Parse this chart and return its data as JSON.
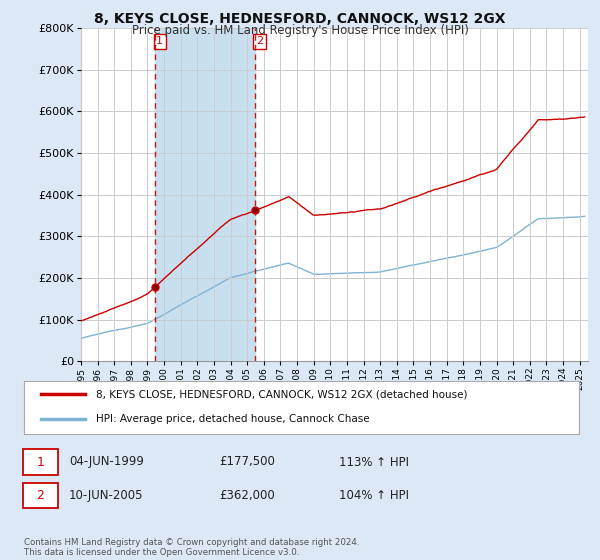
{
  "title": "8, KEYS CLOSE, HEDNESFORD, CANNOCK, WS12 2GX",
  "subtitle": "Price paid vs. HM Land Registry's House Price Index (HPI)",
  "legend_line1": "8, KEYS CLOSE, HEDNESFORD, CANNOCK, WS12 2GX (detached house)",
  "legend_line2": "HPI: Average price, detached house, Cannock Chase",
  "transaction1_date": "04-JUN-1999",
  "transaction1_price": "£177,500",
  "transaction1_hpi": "113% ↑ HPI",
  "transaction2_date": "10-JUN-2005",
  "transaction2_price": "£362,000",
  "transaction2_hpi": "104% ↑ HPI",
  "footer": "Contains HM Land Registry data © Crown copyright and database right 2024.\nThis data is licensed under the Open Government Licence v3.0.",
  "red_line_color": "#cc0000",
  "blue_line_color": "#7fb3d3",
  "background_color": "#dce8f5",
  "plot_bg_color": "#ffffff",
  "grid_color": "#cccccc",
  "vline_color": "#cc0000",
  "shade_color": "#c8dff0",
  "ylim": [
    0,
    800000
  ],
  "xlim_start": 1995.0,
  "xlim_end": 2025.5,
  "transaction1_x": 1999.43,
  "transaction1_y": 177500,
  "transaction2_x": 2005.44,
  "transaction2_y": 362000
}
